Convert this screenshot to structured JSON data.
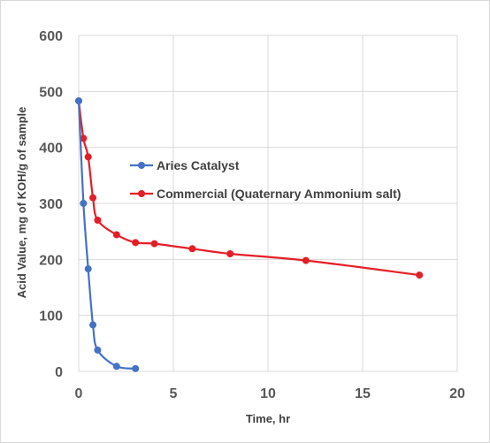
{
  "chart_data": {
    "type": "line",
    "title": "",
    "xlabel": "Time, hr",
    "ylabel": "Acid Value, mg of KOH/g of sample",
    "xlim": [
      0,
      20
    ],
    "ylim": [
      0,
      600
    ],
    "xticks": [
      0,
      5,
      10,
      15,
      20
    ],
    "yticks": [
      0,
      100,
      200,
      300,
      400,
      500,
      600
    ],
    "grid": "both",
    "legend_position": "center-right",
    "series": [
      {
        "name": "Aries Catalyst",
        "color": "#4472c4",
        "x": [
          0,
          0.25,
          0.5,
          0.75,
          1,
          2,
          3
        ],
        "y": [
          483,
          300,
          183,
          83,
          38,
          9,
          5
        ]
      },
      {
        "name": "Commercial (Quaternary Ammonium salt)",
        "color": "#e41e26",
        "x": [
          0,
          0.25,
          0.5,
          0.75,
          1,
          2,
          3,
          4,
          6,
          8,
          12,
          18
        ],
        "y": [
          483,
          416,
          383,
          310,
          270,
          244,
          230,
          228,
          219,
          210,
          198,
          172
        ]
      }
    ]
  }
}
